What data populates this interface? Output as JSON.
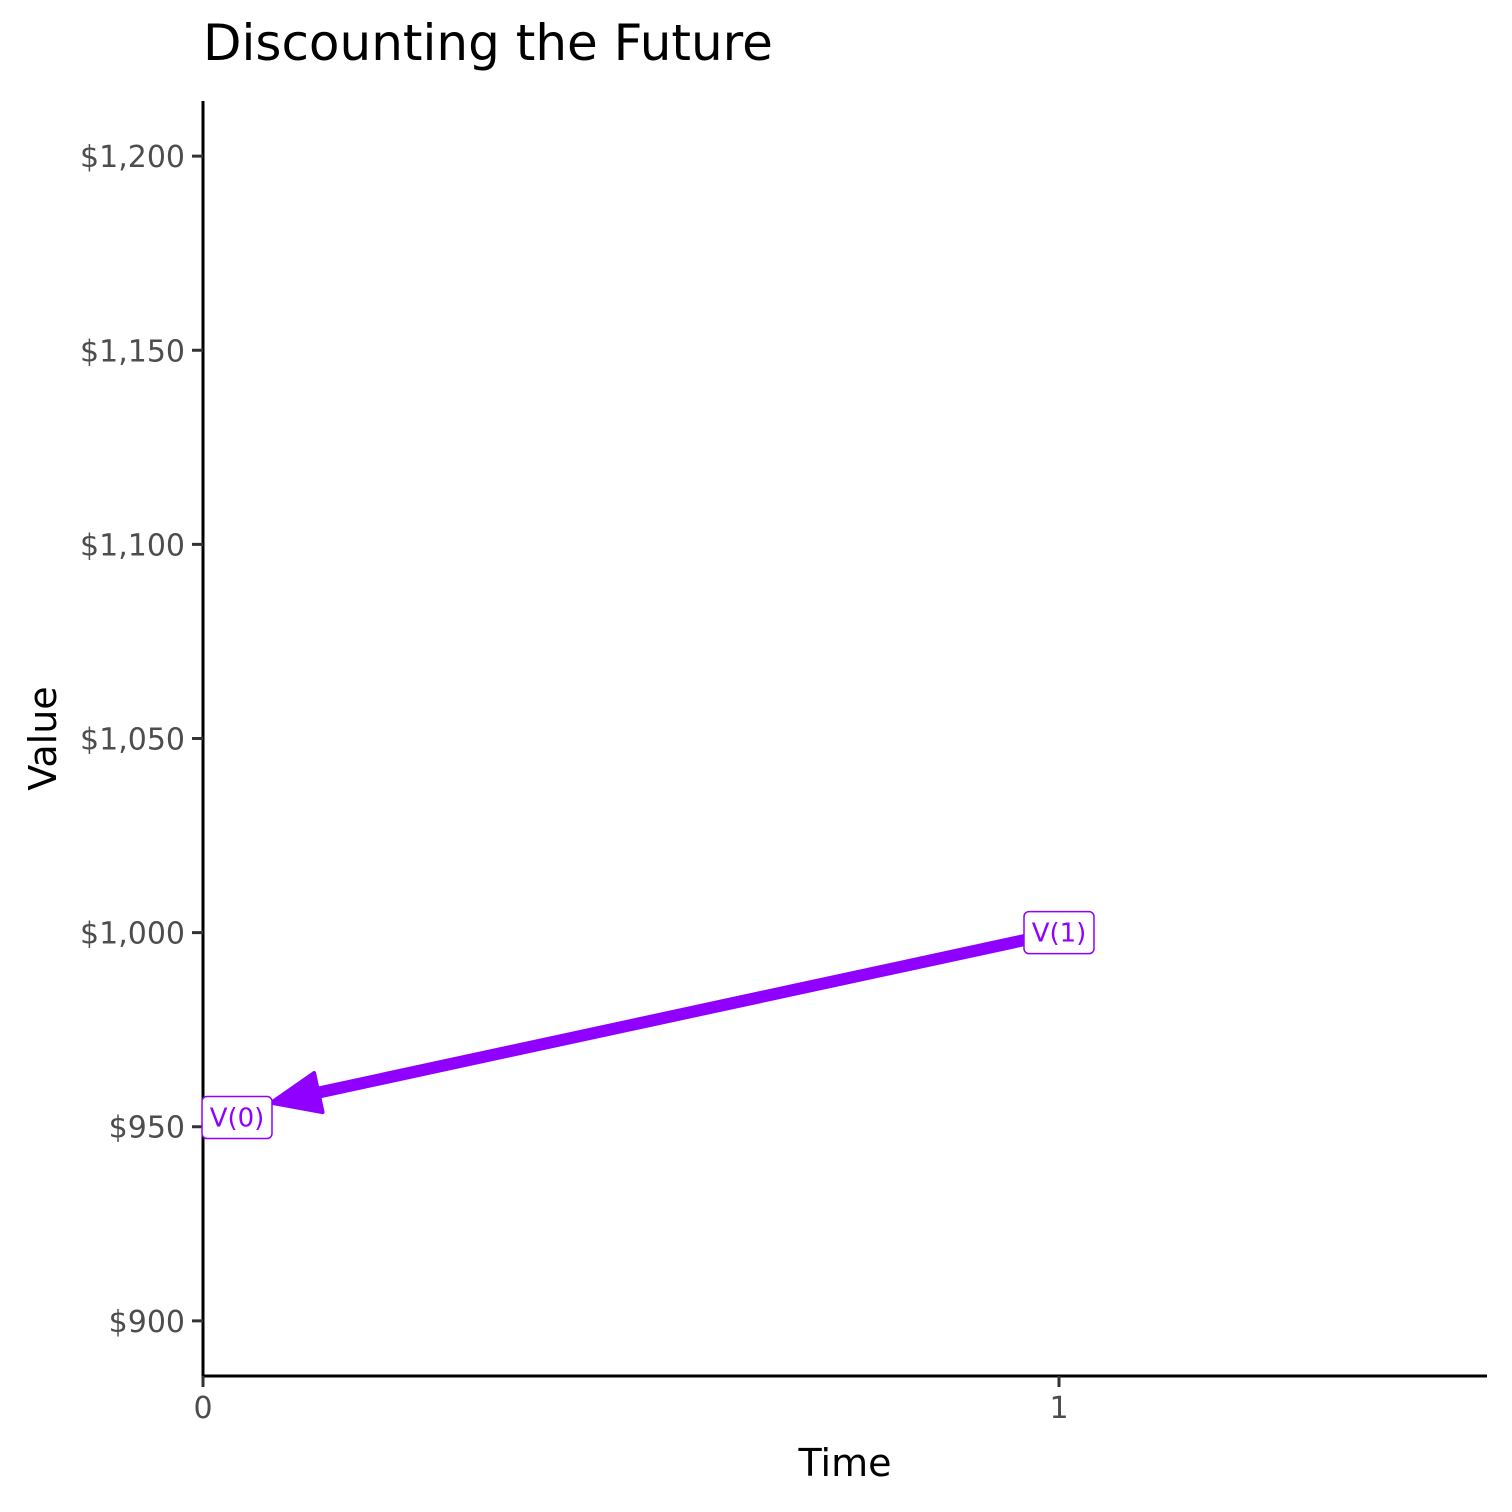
{
  "chart_data": {
    "type": "line",
    "title": "Discounting the Future",
    "xlabel": "Time",
    "ylabel": "Value",
    "xlim": [
      0,
      1.5
    ],
    "ylim": [
      885.8,
      1214.2
    ],
    "x_ticks": [
      0,
      1
    ],
    "x_tick_labels": [
      "0",
      "1"
    ],
    "y_ticks": [
      900,
      950,
      1000,
      1050,
      1100,
      1150,
      1200
    ],
    "y_tick_labels": [
      "$900",
      "$950",
      "$1,000",
      "$1,050",
      "$1,100",
      "$1,150",
      "$1,200"
    ],
    "grid": false,
    "series": [
      {
        "points": [
          {
            "x": 1,
            "y": 1000,
            "label": "V(1)"
          },
          {
            "x": 0,
            "y": 952.38,
            "label": "V(0)"
          }
        ],
        "arrow_direction": "from V(1) to V(0)"
      }
    ],
    "color": "#8F00FF"
  }
}
